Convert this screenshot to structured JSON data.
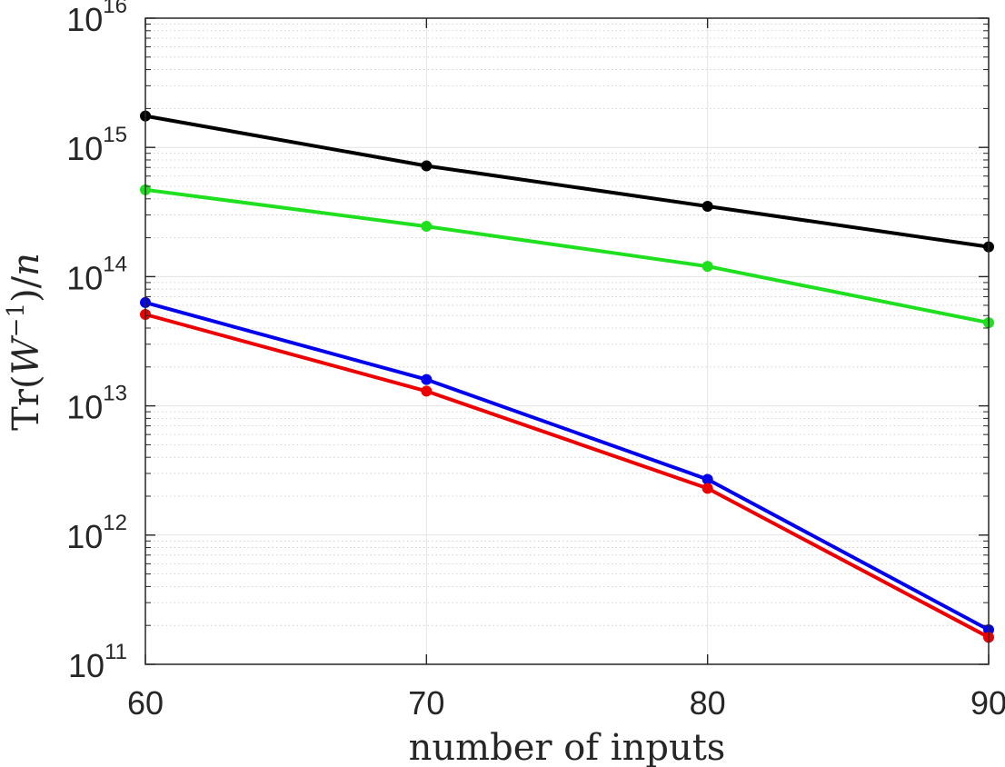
{
  "chart_data": {
    "type": "line",
    "title": "",
    "xlabel": "number of inputs",
    "ylabel_parts": {
      "prefix": "Tr(",
      "var": "W",
      "sup": "−1",
      "mid": ")/",
      "den": "n"
    },
    "xlim": [
      60,
      90
    ],
    "ylim": [
      100000000000.0,
      1e+16
    ],
    "yscale": "log",
    "grid": true,
    "x_ticks": [
      60,
      70,
      80,
      90
    ],
    "x_tick_labels": [
      "60",
      "70",
      "80",
      "90"
    ],
    "y_tick_labels": [
      {
        "base": "10",
        "exp": "11"
      },
      {
        "base": "10",
        "exp": "12"
      },
      {
        "base": "10",
        "exp": "13"
      },
      {
        "base": "10",
        "exp": "14"
      },
      {
        "base": "10",
        "exp": "15"
      },
      {
        "base": "10",
        "exp": "16"
      }
    ],
    "x": [
      60,
      70,
      80,
      90
    ],
    "series": [
      {
        "color": "#000000",
        "values": [
          1750000000000000.0,
          720000000000000.0,
          350000000000000.0,
          170000000000000.0
        ]
      },
      {
        "color": "#1fe01f",
        "values": [
          470000000000000.0,
          245000000000000.0,
          120000000000000.0,
          44000000000000.0
        ]
      },
      {
        "color": "#0000ee",
        "values": [
          63000000000000.0,
          16000000000000.0,
          2700000000000.0,
          185000000000.0
        ]
      },
      {
        "color": "#ee0000",
        "values": [
          51000000000000.0,
          13000000000000.0,
          2300000000000.0,
          162000000000.0
        ]
      }
    ]
  }
}
